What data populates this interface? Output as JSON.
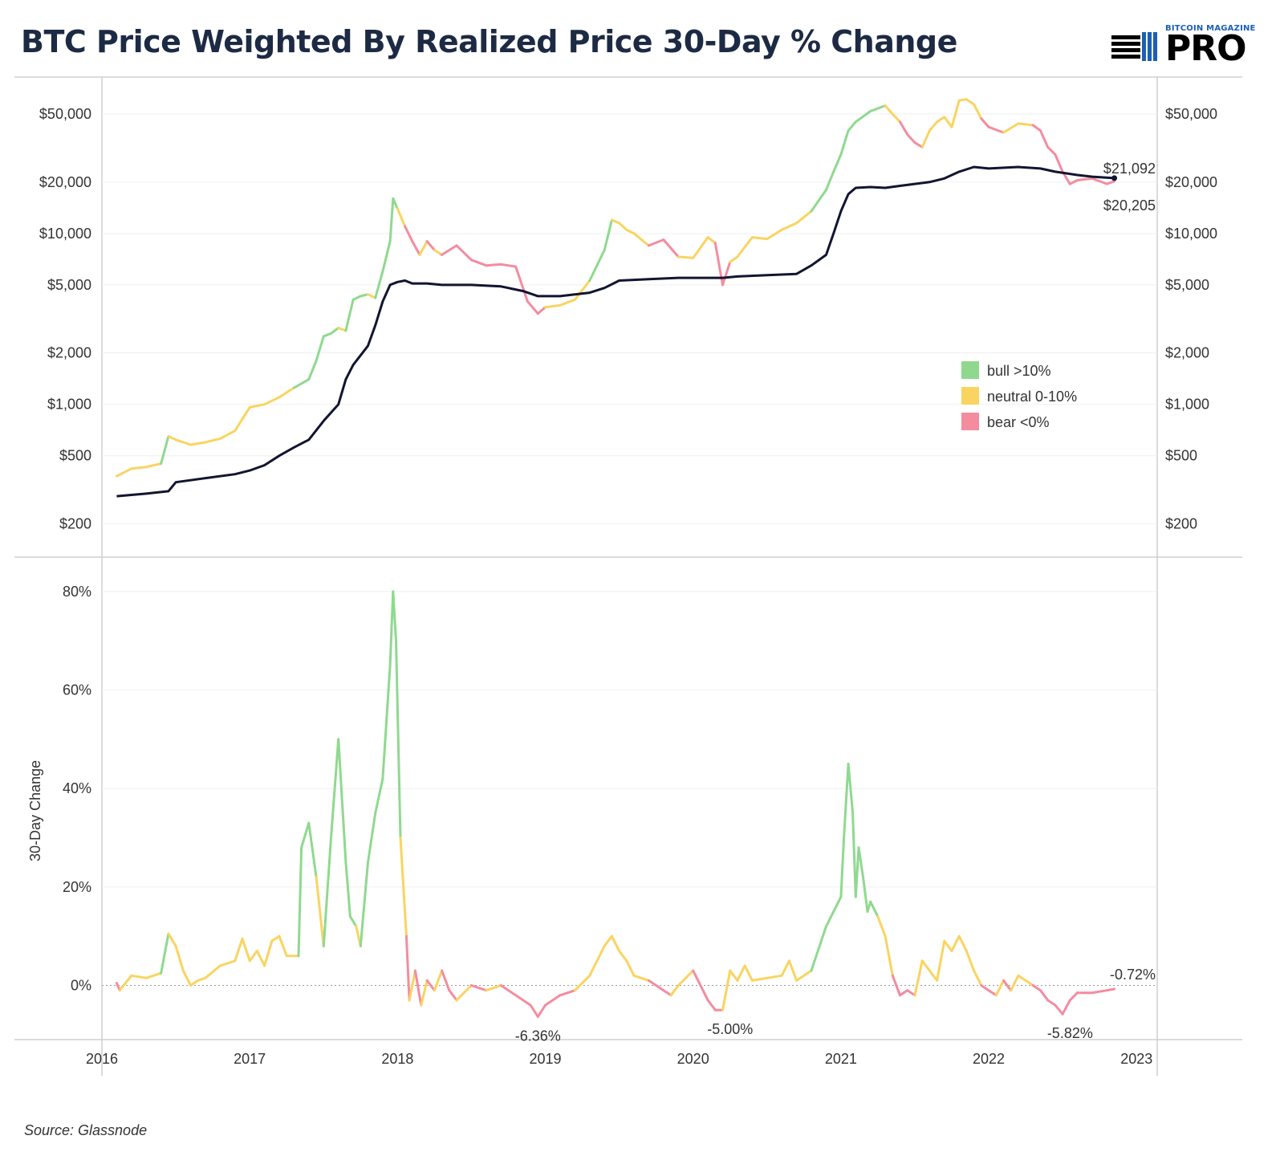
{
  "header": {
    "title": "BTC Price Weighted By Realized Price 30-Day % Change",
    "logo_brand": "BITCOIN MAGAZINE",
    "logo_word": "PRO"
  },
  "footer": {
    "source": "Source: Glassnode"
  },
  "colors": {
    "bull": "#8fd98f",
    "neutral": "#f9d460",
    "bear": "#f48ca0",
    "realized": "#111530",
    "title": "#1d2a44",
    "annotation_bear": "#f27f95"
  },
  "chart_data": [
    {
      "type": "line",
      "title": "BTC Price Weighted By Realized Price 30-Day % Change",
      "scale": "log",
      "ylim": [
        150,
        70000
      ],
      "y_ticks": [
        200,
        500,
        1000,
        2000,
        5000,
        10000,
        20000,
        50000
      ],
      "y_tick_labels": [
        "$200",
        "$500",
        "$1,000",
        "$2,000",
        "$5,000",
        "$10,000",
        "$20,000",
        "$50,000"
      ],
      "x_tick_labels": [
        "2016",
        "2017",
        "2018",
        "2019",
        "2020",
        "2021",
        "2022",
        "2023"
      ],
      "x_ticks": [
        2016,
        2017,
        2018,
        2019,
        2020,
        2021,
        2022,
        2023
      ],
      "legend": {
        "position": "right",
        "items": [
          {
            "label": "bull >10%",
            "color": "#8fd98f"
          },
          {
            "label": "neutral 0-10%",
            "color": "#f9d460"
          },
          {
            "label": "bear <0%",
            "color": "#f48ca0"
          }
        ]
      },
      "annotations": [
        {
          "text": "$21,092",
          "x": 2022.85,
          "y": 21092,
          "series": "Realized Price"
        },
        {
          "text": "$20,205",
          "x": 2022.85,
          "y": 20205,
          "series": "BTC Price"
        }
      ],
      "series": [
        {
          "name": "BTC Price",
          "note_regime": "colored by regime of 30-day % change",
          "x": [
            2016.1,
            2016.2,
            2016.3,
            2016.4,
            2016.45,
            2016.5,
            2016.6,
            2016.7,
            2016.8,
            2016.9,
            2017.0,
            2017.1,
            2017.2,
            2017.3,
            2017.4,
            2017.45,
            2017.5,
            2017.55,
            2017.6,
            2017.65,
            2017.7,
            2017.75,
            2017.8,
            2017.85,
            2017.9,
            2017.95,
            2017.97,
            2018.0,
            2018.05,
            2018.1,
            2018.15,
            2018.2,
            2018.25,
            2018.3,
            2018.4,
            2018.5,
            2018.6,
            2018.7,
            2018.8,
            2018.88,
            2018.95,
            2019.0,
            2019.1,
            2019.2,
            2019.3,
            2019.4,
            2019.45,
            2019.5,
            2019.55,
            2019.6,
            2019.7,
            2019.8,
            2019.9,
            2020.0,
            2020.1,
            2020.15,
            2020.2,
            2020.25,
            2020.3,
            2020.4,
            2020.5,
            2020.6,
            2020.7,
            2020.8,
            2020.9,
            2020.95,
            2021.0,
            2021.05,
            2021.1,
            2021.2,
            2021.3,
            2021.35,
            2021.4,
            2021.45,
            2021.5,
            2021.55,
            2021.6,
            2021.65,
            2021.7,
            2021.75,
            2021.8,
            2021.85,
            2021.9,
            2021.95,
            2022.0,
            2022.1,
            2022.2,
            2022.3,
            2022.35,
            2022.4,
            2022.45,
            2022.5,
            2022.55,
            2022.6,
            2022.7,
            2022.8,
            2022.85
          ],
          "y": [
            380,
            420,
            430,
            450,
            650,
            620,
            580,
            600,
            630,
            700,
            960,
            1000,
            1100,
            1250,
            1400,
            1800,
            2500,
            2600,
            2800,
            2700,
            4100,
            4300,
            4400,
            4200,
            6000,
            9000,
            16000,
            14000,
            11000,
            9000,
            7500,
            9000,
            8000,
            7500,
            8500,
            7000,
            6500,
            6600,
            6400,
            4000,
            3400,
            3700,
            3800,
            4100,
            5300,
            8000,
            12000,
            11500,
            10500,
            10000,
            8500,
            9200,
            7300,
            7200,
            9500,
            8800,
            5000,
            6800,
            7300,
            9500,
            9300,
            10500,
            11500,
            13500,
            18000,
            23000,
            29000,
            40000,
            45000,
            52000,
            56000,
            50000,
            45000,
            38000,
            34000,
            32000,
            40000,
            45000,
            48000,
            42000,
            60000,
            61000,
            57000,
            47000,
            42000,
            39000,
            44000,
            43000,
            40000,
            32000,
            29000,
            23000,
            19500,
            20500,
            21000,
            19500,
            20205
          ],
          "regime": [
            "bear",
            "neutral",
            "neutral",
            "neutral",
            "bull",
            "neutral",
            "neutral",
            "neutral",
            "neutral",
            "neutral",
            "neutral",
            "neutral",
            "neutral",
            "neutral",
            "bull",
            "bull",
            "bull",
            "bull",
            "bull",
            "neutral",
            "bull",
            "bull",
            "bull",
            "neutral",
            "bull",
            "bull",
            "bull",
            "bull",
            "neutral",
            "bear",
            "bear",
            "neutral",
            "bear",
            "neutral",
            "bear",
            "bear",
            "bear",
            "bear",
            "bear",
            "bear",
            "bear",
            "bear",
            "neutral",
            "neutral",
            "neutral",
            "bull",
            "bull",
            "neutral",
            "neutral",
            "neutral",
            "neutral",
            "bear",
            "bear",
            "neutral",
            "neutral",
            "neutral",
            "bear",
            "bear",
            "neutral",
            "neutral",
            "neutral",
            "neutral",
            "neutral",
            "neutral",
            "bull",
            "bull",
            "bull",
            "bull",
            "bull",
            "bull",
            "bull",
            "neutral",
            "neutral",
            "bear",
            "bear",
            "bear",
            "neutral",
            "neutral",
            "neutral",
            "neutral",
            "neutral",
            "neutral",
            "neutral",
            "neutral",
            "bear",
            "bear",
            "neutral",
            "neutral",
            "bear",
            "bear",
            "bear",
            "bear",
            "bear",
            "bear",
            "bear",
            "bear",
            "bear"
          ]
        },
        {
          "name": "Realized Price",
          "x": [
            2016.1,
            2016.3,
            2016.45,
            2016.5,
            2016.7,
            2016.9,
            2017.0,
            2017.1,
            2017.2,
            2017.3,
            2017.4,
            2017.5,
            2017.6,
            2017.65,
            2017.7,
            2017.8,
            2017.85,
            2017.9,
            2017.95,
            2018.0,
            2018.05,
            2018.1,
            2018.2,
            2018.3,
            2018.5,
            2018.7,
            2018.85,
            2018.95,
            2019.1,
            2019.3,
            2019.4,
            2019.5,
            2019.7,
            2019.9,
            2020.0,
            2020.1,
            2020.2,
            2020.3,
            2020.5,
            2020.7,
            2020.8,
            2020.9,
            2020.95,
            2021.0,
            2021.05,
            2021.1,
            2021.2,
            2021.3,
            2021.4,
            2021.5,
            2021.6,
            2021.7,
            2021.8,
            2021.9,
            2022.0,
            2022.2,
            2022.35,
            2022.45,
            2022.6,
            2022.7,
            2022.85
          ],
          "y": [
            290,
            300,
            310,
            350,
            370,
            390,
            410,
            440,
            500,
            560,
            620,
            800,
            1000,
            1400,
            1700,
            2200,
            2900,
            4000,
            5000,
            5200,
            5300,
            5100,
            5100,
            5000,
            5000,
            4900,
            4600,
            4300,
            4300,
            4500,
            4800,
            5300,
            5400,
            5500,
            5500,
            5500,
            5500,
            5600,
            5700,
            5800,
            6500,
            7500,
            10000,
            13500,
            17000,
            18500,
            18700,
            18500,
            19000,
            19500,
            20000,
            21000,
            23000,
            24500,
            24000,
            24500,
            24000,
            23000,
            22000,
            21500,
            21092
          ]
        }
      ]
    },
    {
      "type": "line",
      "ylabel": "30-Day Change",
      "ylim": [
        -11,
        87
      ],
      "y_ticks": [
        0,
        20,
        40,
        60,
        80
      ],
      "y_tick_labels": [
        "0%",
        "20%",
        "40%",
        "60%",
        "80%"
      ],
      "annotations": [
        {
          "text": "-6.36%",
          "x": 2018.95,
          "y": -6.36
        },
        {
          "text": "-5.00%",
          "x": 2020.25,
          "y": -5.0
        },
        {
          "text": "-5.82%",
          "x": 2022.55,
          "y": -5.82
        },
        {
          "text": "-0.72%",
          "x": 2022.85,
          "y": -0.72
        }
      ],
      "series": [
        {
          "name": "30-Day % Change",
          "note_regime": "colored by regime (>10% bull, 0-10% neutral, <0% bear)",
          "x": [
            2016.1,
            2016.12,
            2016.2,
            2016.3,
            2016.4,
            2016.45,
            2016.5,
            2016.55,
            2016.6,
            2016.65,
            2016.7,
            2016.8,
            2016.9,
            2016.95,
            2017.0,
            2017.05,
            2017.1,
            2017.15,
            2017.2,
            2017.25,
            2017.33,
            2017.35,
            2017.4,
            2017.45,
            2017.5,
            2017.55,
            2017.6,
            2017.65,
            2017.68,
            2017.72,
            2017.75,
            2017.8,
            2017.85,
            2017.9,
            2017.95,
            2017.97,
            2017.99,
            2018.02,
            2018.06,
            2018.08,
            2018.12,
            2018.16,
            2018.2,
            2018.25,
            2018.3,
            2018.35,
            2018.4,
            2018.5,
            2018.6,
            2018.7,
            2018.8,
            2018.9,
            2018.95,
            2019.0,
            2019.1,
            2019.2,
            2019.3,
            2019.4,
            2019.45,
            2019.5,
            2019.55,
            2019.6,
            2019.7,
            2019.8,
            2019.85,
            2019.9,
            2020.0,
            2020.1,
            2020.15,
            2020.2,
            2020.25,
            2020.3,
            2020.35,
            2020.4,
            2020.5,
            2020.6,
            2020.65,
            2020.7,
            2020.8,
            2020.9,
            2020.95,
            2021.0,
            2021.02,
            2021.05,
            2021.08,
            2021.1,
            2021.12,
            2021.15,
            2021.18,
            2021.2,
            2021.25,
            2021.3,
            2021.35,
            2021.4,
            2021.45,
            2021.5,
            2021.55,
            2021.6,
            2021.65,
            2021.7,
            2021.75,
            2021.8,
            2021.85,
            2021.9,
            2021.95,
            2022.0,
            2022.05,
            2022.1,
            2022.15,
            2022.2,
            2022.25,
            2022.3,
            2022.35,
            2022.4,
            2022.45,
            2022.5,
            2022.55,
            2022.6,
            2022.65,
            2022.7,
            2022.8,
            2022.85
          ],
          "y": [
            0.5,
            -1,
            2,
            1.5,
            2.5,
            10.5,
            8,
            3,
            0,
            1,
            1.5,
            4,
            5,
            9.5,
            5,
            7,
            4,
            9,
            10,
            6,
            6,
            28,
            33,
            22,
            8,
            30,
            50,
            25,
            14,
            12,
            8,
            25,
            35,
            42,
            65,
            80,
            70,
            30,
            10,
            -3,
            3,
            -4,
            1,
            -1,
            3,
            -1,
            -3,
            0,
            -1,
            0,
            -2,
            -4,
            -6.36,
            -4,
            -2,
            -1,
            2,
            8,
            10,
            7,
            5,
            2,
            1,
            -1,
            -2,
            0,
            3,
            -3,
            -5,
            -5,
            3,
            1,
            4,
            1,
            1.5,
            2,
            5,
            1,
            3,
            12,
            15,
            18,
            30,
            45,
            35,
            18,
            28,
            22,
            15,
            17,
            14,
            10,
            2,
            -2,
            -1,
            -2,
            5,
            3,
            1,
            9,
            7,
            10,
            7,
            3,
            0,
            -1,
            -2,
            1,
            -1,
            2,
            1,
            0,
            -1,
            -3,
            -4,
            -5.82,
            -3,
            -1.5,
            -1.5,
            -1.5,
            -1,
            -0.72
          ],
          "regime": [
            "neutral",
            "bear",
            "neutral",
            "neutral",
            "neutral",
            "bull",
            "neutral",
            "neutral",
            "neutral",
            "neutral",
            "neutral",
            "neutral",
            "neutral",
            "neutral",
            "neutral",
            "neutral",
            "neutral",
            "neutral",
            "neutral",
            "neutral",
            "neutral",
            "bull",
            "bull",
            "bull",
            "neutral",
            "bull",
            "bull",
            "bull",
            "bull",
            "bull",
            "neutral",
            "bull",
            "bull",
            "bull",
            "bull",
            "bull",
            "bull",
            "bull",
            "neutral",
            "bear",
            "neutral",
            "bear",
            "neutral",
            "bear",
            "neutral",
            "bear",
            "bear",
            "neutral",
            "bear",
            "neutral",
            "bear",
            "bear",
            "bear",
            "bear",
            "bear",
            "bear",
            "neutral",
            "neutral",
            "neutral",
            "neutral",
            "neutral",
            "neutral",
            "neutral",
            "bear",
            "bear",
            "neutral",
            "neutral",
            "bear",
            "bear",
            "bear",
            "neutral",
            "neutral",
            "neutral",
            "neutral",
            "neutral",
            "neutral",
            "neutral",
            "neutral",
            "neutral",
            "bull",
            "bull",
            "bull",
            "bull",
            "bull",
            "bull",
            "bull",
            "bull",
            "bull",
            "bull",
            "bull",
            "bull",
            "neutral",
            "neutral",
            "bear",
            "bear",
            "bear",
            "neutral",
            "neutral",
            "neutral",
            "neutral",
            "neutral",
            "neutral",
            "neutral",
            "neutral",
            "neutral",
            "bear",
            "bear",
            "neutral",
            "bear",
            "neutral",
            "neutral",
            "neutral",
            "bear",
            "bear",
            "bear",
            "bear",
            "bear",
            "bear",
            "bear",
            "bear",
            "bear",
            "bear",
            "bear"
          ]
        }
      ]
    }
  ]
}
